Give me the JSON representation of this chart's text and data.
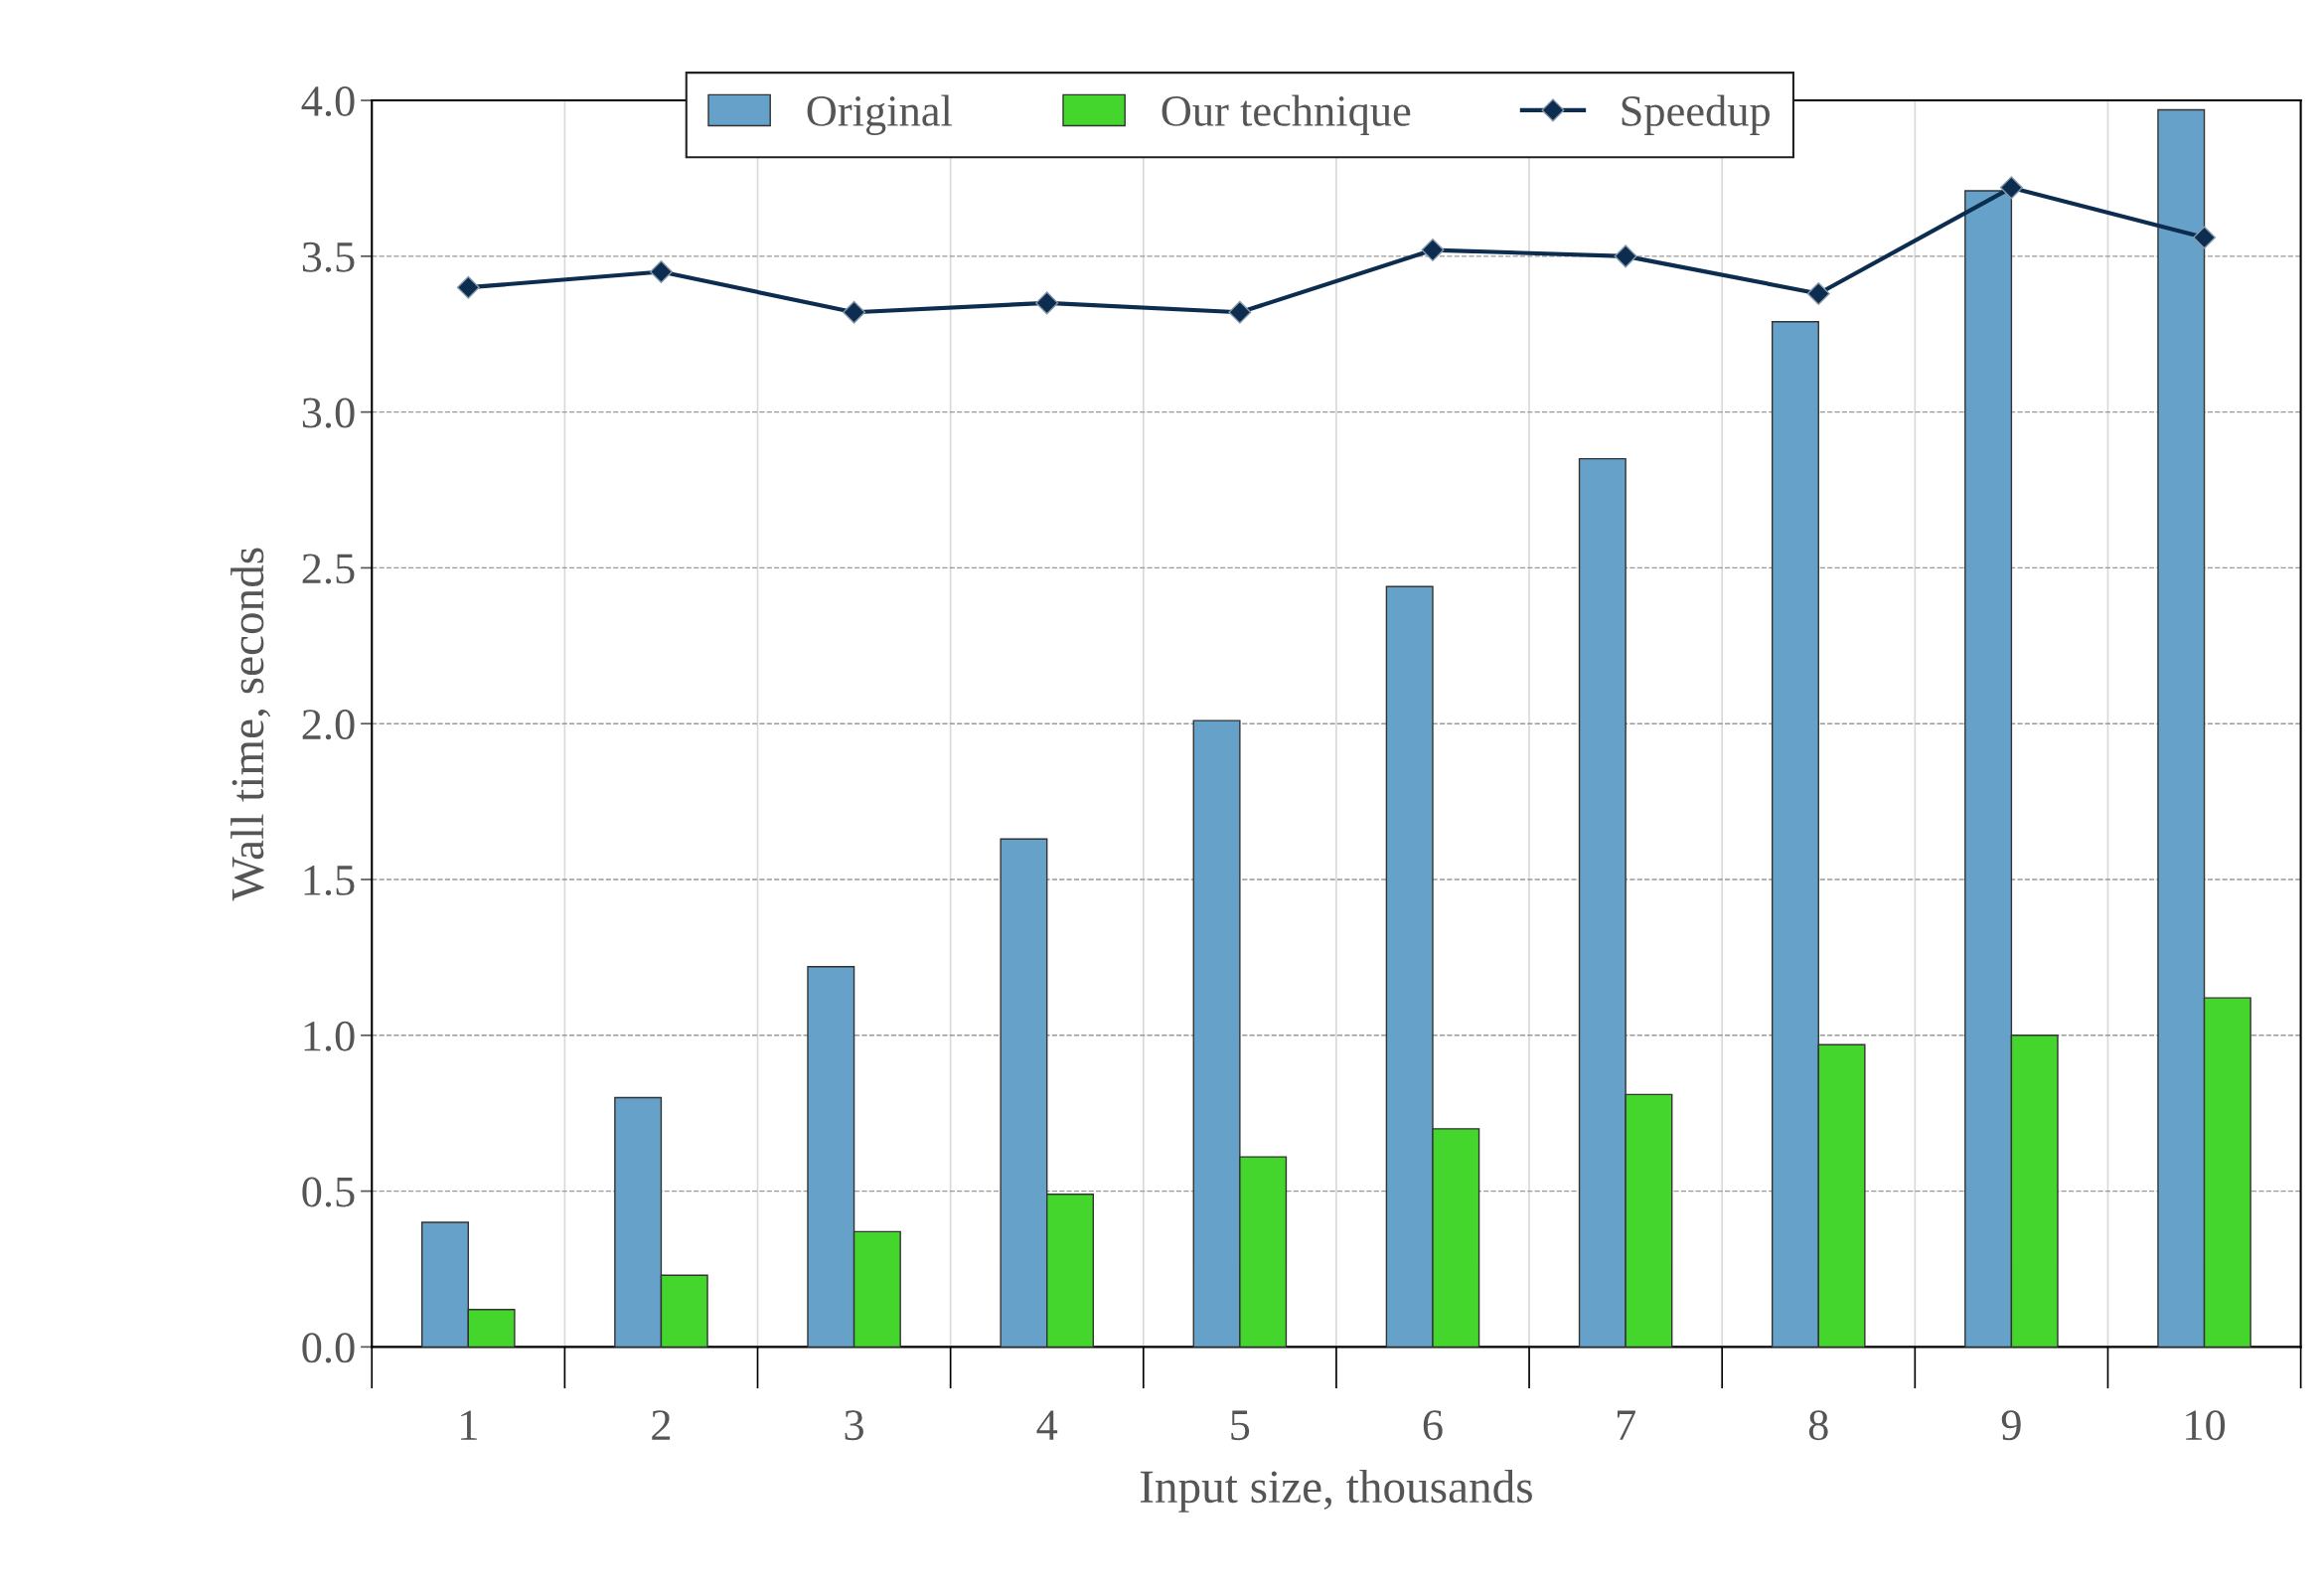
{
  "chart_data": {
    "type": "bar",
    "xlabel": "Input size, thousands",
    "ylabel": "Wall time, seconds",
    "categories": [
      "1",
      "2",
      "3",
      "4",
      "5",
      "6",
      "7",
      "8",
      "9",
      "10"
    ],
    "series": [
      {
        "name": "Original",
        "color": "#65a1c9",
        "values": [
          0.4,
          0.8,
          1.22,
          1.63,
          2.01,
          2.44,
          2.85,
          3.29,
          3.71,
          3.97
        ]
      },
      {
        "name": "Our technique",
        "color": "#44d62c",
        "values": [
          0.12,
          0.23,
          0.37,
          0.49,
          0.61,
          0.7,
          0.81,
          0.97,
          1.0,
          1.12
        ]
      },
      {
        "name": "Speedup",
        "type": "line",
        "color": "#0c2d4f",
        "marker": "diamond",
        "line_style": "solid",
        "values": [
          3.4,
          3.45,
          3.32,
          3.35,
          3.32,
          3.52,
          3.5,
          3.38,
          3.72,
          3.56
        ]
      }
    ],
    "ylim": [
      0,
      4
    ],
    "yticks": [
      {
        "value": 0,
        "label": "0.0"
      },
      0.5,
      {
        "value": 1,
        "label": "1.0"
      },
      1.5,
      {
        "value": 2,
        "label": "2.0"
      },
      2.5,
      {
        "value": 3,
        "label": "3.0"
      },
      3.5,
      {
        "value": 4,
        "label": "4.0"
      }
    ],
    "grid": true,
    "legend": "top"
  }
}
